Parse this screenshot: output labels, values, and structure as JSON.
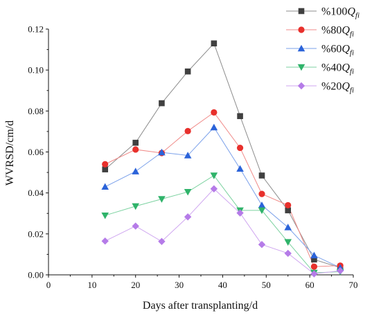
{
  "chart_data": {
    "type": "line",
    "xlabel": "Days after transplanting/d",
    "ylabel": "WVRSD/cm/d",
    "xlim": [
      0,
      70
    ],
    "ylim": [
      0,
      0.12
    ],
    "xticks": [
      0,
      10,
      20,
      30,
      40,
      50,
      60,
      70
    ],
    "yticks": [
      0.0,
      0.02,
      0.04,
      0.06,
      0.08,
      0.1,
      0.12
    ],
    "xtick_labels": [
      "0",
      "10",
      "20",
      "30",
      "40",
      "50",
      "60",
      "70"
    ],
    "ytick_labels": [
      "0.00",
      "0.02",
      "0.04",
      "0.06",
      "0.08",
      "0.10",
      "0.12"
    ],
    "grid": false,
    "legend_position": "top-right",
    "x": [
      13,
      20,
      26,
      32,
      38,
      44,
      49,
      55,
      61,
      67
    ],
    "series": [
      {
        "name": "%100Qfi",
        "legend_prefix": "%100",
        "legend_q": "Q",
        "legend_sub": "fi",
        "marker": "square",
        "color": "#404040",
        "line_color": "#8c8c8c",
        "values": [
          0.0515,
          0.0645,
          0.0838,
          0.0993,
          0.113,
          0.0775,
          0.0485,
          0.0315,
          0.0075,
          0.0035
        ]
      },
      {
        "name": "%80Qfi",
        "legend_prefix": "%80",
        "legend_q": "Q",
        "legend_sub": "fi",
        "marker": "circle",
        "color": "#e8302c",
        "line_color": "#f08a88",
        "values": [
          0.054,
          0.0612,
          0.0595,
          0.0702,
          0.0793,
          0.062,
          0.0395,
          0.034,
          0.004,
          0.0045
        ]
      },
      {
        "name": "%60Qfi",
        "legend_prefix": "%60",
        "legend_q": "Q",
        "legend_sub": "fi",
        "marker": "triangle-up",
        "color": "#2b63d9",
        "line_color": "#7aa0ea",
        "values": [
          0.043,
          0.0505,
          0.0598,
          0.0583,
          0.072,
          0.0518,
          0.034,
          0.0232,
          0.0095,
          0.0035
        ]
      },
      {
        "name": "%40Qfi",
        "legend_prefix": "%40",
        "legend_q": "Q",
        "legend_sub": "fi",
        "marker": "triangle-down",
        "color": "#2fb36a",
        "line_color": "#7cd2a0",
        "values": [
          0.029,
          0.0335,
          0.037,
          0.0405,
          0.0485,
          0.0315,
          0.0315,
          0.016,
          0.001,
          0.0015
        ]
      },
      {
        "name": "%20Qfi",
        "legend_prefix": "%20",
        "legend_q": "Q",
        "legend_sub": "fi",
        "marker": "diamond",
        "color": "#b57be8",
        "line_color": "#cfa6f0",
        "values": [
          0.0165,
          0.0238,
          0.0163,
          0.0283,
          0.042,
          0.0302,
          0.0148,
          0.0105,
          0.0005,
          0.002
        ]
      }
    ]
  }
}
